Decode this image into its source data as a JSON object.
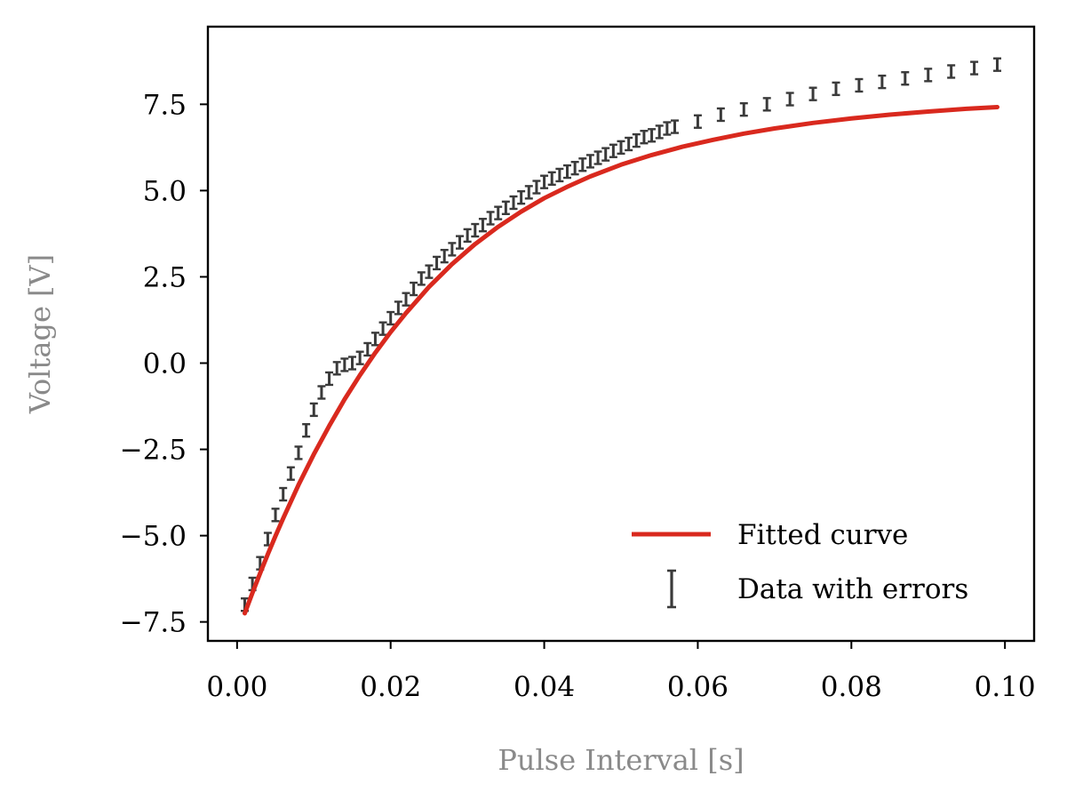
{
  "chart_data": {
    "type": "scatter",
    "title": "",
    "xlabel": "Pulse Interval [s]",
    "ylabel": "Voltage [V]",
    "xlim": [
      -0.0038,
      0.1038
    ],
    "ylim": [
      -8.05,
      9.75
    ],
    "x_ticks": [
      0.0,
      0.02,
      0.04,
      0.06,
      0.08,
      0.1
    ],
    "x_tick_labels": [
      "0.00",
      "0.02",
      "0.04",
      "0.06",
      "0.08",
      "0.10"
    ],
    "y_ticks": [
      -7.5,
      -5.0,
      -2.5,
      0.0,
      2.5,
      5.0,
      7.5
    ],
    "y_tick_labels": [
      "−7.5",
      "−5.0",
      "−2.5",
      "0.0",
      "2.5",
      "5.0",
      "7.5"
    ],
    "grid": false,
    "legend_position": "bottom-right",
    "series": [
      {
        "name": "Data with errors",
        "kind": "errorbar",
        "color": "#3a3a3a",
        "x": [
          0.001,
          0.002,
          0.003,
          0.004,
          0.005,
          0.006,
          0.007,
          0.008,
          0.009,
          0.01,
          0.011,
          0.012,
          0.013,
          0.014,
          0.015,
          0.016,
          0.017,
          0.018,
          0.019,
          0.02,
          0.021,
          0.022,
          0.023,
          0.024,
          0.025,
          0.026,
          0.027,
          0.028,
          0.029,
          0.03,
          0.031,
          0.032,
          0.033,
          0.034,
          0.035,
          0.036,
          0.037,
          0.038,
          0.039,
          0.04,
          0.041,
          0.042,
          0.043,
          0.044,
          0.045,
          0.046,
          0.047,
          0.048,
          0.049,
          0.05,
          0.051,
          0.052,
          0.053,
          0.054,
          0.055,
          0.056,
          0.057,
          0.06,
          0.063,
          0.066,
          0.069,
          0.072,
          0.075,
          0.078,
          0.081,
          0.084,
          0.087,
          0.09,
          0.093,
          0.096,
          0.099
        ],
        "y": [
          -7.0,
          -6.4,
          -5.8,
          -5.1,
          -4.4,
          -3.8,
          -3.2,
          -2.6,
          -1.95,
          -1.35,
          -0.85,
          -0.45,
          -0.15,
          -0.05,
          0.0,
          0.15,
          0.4,
          0.7,
          1.0,
          1.3,
          1.6,
          1.85,
          2.15,
          2.45,
          2.65,
          2.9,
          3.1,
          3.3,
          3.5,
          3.7,
          3.85,
          4.0,
          4.2,
          4.35,
          4.5,
          4.65,
          4.8,
          4.95,
          5.1,
          5.25,
          5.35,
          5.45,
          5.55,
          5.65,
          5.75,
          5.85,
          5.95,
          6.05,
          6.15,
          6.25,
          6.35,
          6.45,
          6.55,
          6.6,
          6.7,
          6.8,
          6.85,
          7.0,
          7.2,
          7.35,
          7.5,
          7.65,
          7.8,
          7.95,
          8.05,
          8.15,
          8.25,
          8.35,
          8.45,
          8.55,
          8.65
        ],
        "error": [
          0.18,
          0.18,
          0.18,
          0.18,
          0.18,
          0.18,
          0.18,
          0.18,
          0.18,
          0.18,
          0.18,
          0.18,
          0.18,
          0.18,
          0.18,
          0.18,
          0.18,
          0.18,
          0.18,
          0.18,
          0.18,
          0.18,
          0.18,
          0.18,
          0.18,
          0.18,
          0.18,
          0.18,
          0.18,
          0.18,
          0.18,
          0.18,
          0.18,
          0.18,
          0.18,
          0.18,
          0.18,
          0.18,
          0.18,
          0.18,
          0.18,
          0.18,
          0.18,
          0.18,
          0.18,
          0.18,
          0.18,
          0.18,
          0.18,
          0.18,
          0.18,
          0.18,
          0.18,
          0.18,
          0.18,
          0.18,
          0.18,
          0.18,
          0.18,
          0.18,
          0.18,
          0.18,
          0.18,
          0.18,
          0.18,
          0.18,
          0.18,
          0.18,
          0.18,
          0.18,
          0.18
        ]
      },
      {
        "name": "Fitted curve",
        "kind": "line",
        "color": "#d9291e",
        "x": [
          0.001,
          0.002,
          0.003,
          0.004,
          0.005,
          0.006,
          0.008,
          0.01,
          0.012,
          0.014,
          0.016,
          0.018,
          0.02,
          0.022,
          0.025,
          0.028,
          0.031,
          0.034,
          0.037,
          0.04,
          0.043,
          0.046,
          0.05,
          0.054,
          0.058,
          0.062,
          0.066,
          0.07,
          0.075,
          0.08,
          0.085,
          0.09,
          0.095,
          0.099
        ],
        "y": [
          -7.25,
          -6.66,
          -6.09,
          -5.54,
          -5.01,
          -4.5,
          -3.53,
          -2.64,
          -1.82,
          -1.05,
          -0.35,
          0.3,
          0.9,
          1.45,
          2.21,
          2.87,
          3.45,
          3.95,
          4.39,
          4.78,
          5.11,
          5.41,
          5.75,
          6.03,
          6.27,
          6.47,
          6.65,
          6.8,
          6.96,
          7.09,
          7.2,
          7.29,
          7.37,
          7.42
        ]
      }
    ]
  }
}
